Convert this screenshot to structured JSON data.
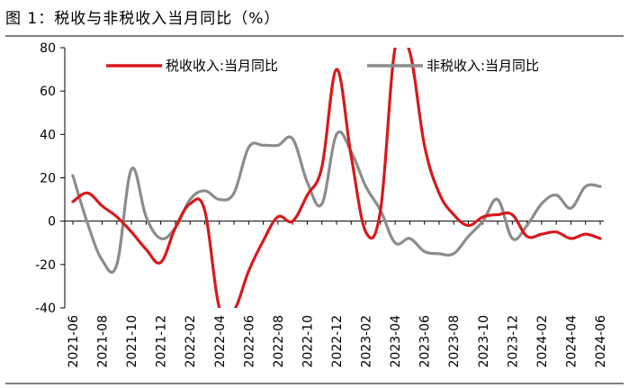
{
  "figure_title": "图 1：税收与非税收入当月同比（%）",
  "chart_data": {
    "type": "line",
    "categories": [
      "2021-06",
      "2021-07",
      "2021-08",
      "2021-09",
      "2021-10",
      "2021-11",
      "2021-12",
      "2022-01",
      "2022-02",
      "2022-03",
      "2022-04",
      "2022-05",
      "2022-06",
      "2022-07",
      "2022-08",
      "2022-09",
      "2022-10",
      "2022-11",
      "2022-12",
      "2023-01",
      "2023-02",
      "2023-03",
      "2023-04",
      "2023-05",
      "2023-06",
      "2023-07",
      "2023-08",
      "2023-09",
      "2023-10",
      "2023-11",
      "2023-12",
      "2024-01",
      "2024-02",
      "2024-03",
      "2024-04",
      "2024-05",
      "2024-06"
    ],
    "x_tick_labels": [
      "2021-06",
      "2021-08",
      "2021-10",
      "2021-12",
      "2022-02",
      "2022-04",
      "2022-06",
      "2022-08",
      "2022-10",
      "2022-12",
      "2023-02",
      "2023-04",
      "2023-06",
      "2023-08",
      "2023-10",
      "2023-12",
      "2024-02",
      "2024-04",
      "2024-06"
    ],
    "ylim": [
      -40,
      80
    ],
    "yticks": [
      80,
      60,
      40,
      20,
      0,
      -20,
      -40
    ],
    "legend_position": "top",
    "series": [
      {
        "name": "税收收入:当月同比",
        "color": "#d7191c",
        "values": [
          9,
          13,
          7,
          2,
          -5,
          -13,
          -19,
          -3,
          8,
          5,
          -40,
          -41,
          -23,
          -9,
          2,
          0,
          12,
          25,
          70,
          30,
          -5,
          5,
          80,
          78,
          35,
          13,
          3,
          -2,
          2,
          3,
          3,
          -7,
          -6,
          -5,
          -8,
          -6,
          -8
        ]
      },
      {
        "name": "非税收入:当月同比",
        "color": "#8c8c8c",
        "values": [
          21,
          -1,
          -18,
          -20,
          24,
          2,
          -8,
          -3,
          10,
          14,
          10,
          13,
          34,
          35,
          35,
          38,
          18,
          8,
          40,
          32,
          16,
          5,
          -10,
          -8,
          -14,
          -15,
          -15,
          -7,
          0,
          10,
          -8,
          -2,
          8,
          12,
          6,
          16,
          16
        ]
      }
    ]
  }
}
